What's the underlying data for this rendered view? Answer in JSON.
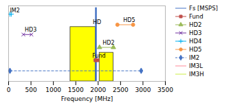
{
  "chart_data": {
    "type": "bar",
    "xlabel": "Frequency [MHz]",
    "xlim": [
      0,
      3500
    ],
    "xticks": [
      0,
      500,
      1000,
      1500,
      2000,
      2500,
      3000,
      3500
    ],
    "ylim": [
      0,
      10
    ],
    "tick_labels": "x",
    "grid": false,
    "legend": "upper right",
    "bars": {
      "color": "yellow",
      "x_start": [
        1380,
        2030
      ],
      "x_end": [
        1940,
        2340
      ],
      "values": [
        7.2,
        3.8
      ]
    },
    "series": [
      {
        "name": "Fs [MSPS]",
        "color": "#4472c4",
        "marker": "none",
        "line_style": "solid",
        "x": [
          1950,
          1950
        ],
        "values": [
          0,
          9.8
        ]
      },
      {
        "name": "Fund",
        "color": "#c0504d",
        "marker": "square",
        "line_style": "solid",
        "x": [
          1940,
          1985
        ],
        "values": [
          2.8,
          2.8
        ]
      },
      {
        "name": "HD2",
        "color": "#9bbb59",
        "marker": "triangle",
        "line_style": "solid",
        "x": [
          2030,
          2340
        ],
        "values": [
          4.5,
          4.5
        ]
      },
      {
        "name": "HD3",
        "color": "#7030a0",
        "marker": "x",
        "line_style": "solid",
        "x": [
          330,
          510
        ],
        "values": [
          6.2,
          6.2
        ]
      },
      {
        "name": "HD4",
        "color": "#00b0f0",
        "marker": "plus",
        "line_style": "solid",
        "x": [
          30,
          60
        ],
        "values": [
          8.9,
          8.9
        ]
      },
      {
        "name": "HD5",
        "color": "#f79646",
        "marker": "circle",
        "line_style": "solid",
        "x": [
          2430,
          2780
        ],
        "values": [
          7.5,
          7.5
        ]
      },
      {
        "name": "IM2",
        "color": "#4472c4",
        "marker": "diamond",
        "line_style": "dashed",
        "x": [
          30,
          2960
        ],
        "values": [
          1.4,
          1.4
        ]
      },
      {
        "name": "IM3L",
        "color": "#ff8899",
        "marker": "none",
        "line_style": "solid",
        "x": [],
        "values": []
      },
      {
        "name": "IM3H",
        "color": "#ccee44",
        "marker": "none",
        "line_style": "solid",
        "x": [],
        "values": []
      }
    ],
    "annotations": [
      {
        "text": "IM2",
        "x": 30,
        "y": 9.1
      },
      {
        "text": "HD3",
        "x": 360,
        "y": 6.6
      },
      {
        "text": "HD5",
        "x": 2560,
        "y": 7.9
      },
      {
        "text": "HD2",
        "x": 2100,
        "y": 4.9
      },
      {
        "text": "HD",
        "x": 1880,
        "y": 7.6
      },
      {
        "text": "Fund",
        "x": 1870,
        "y": 3.1
      }
    ]
  }
}
